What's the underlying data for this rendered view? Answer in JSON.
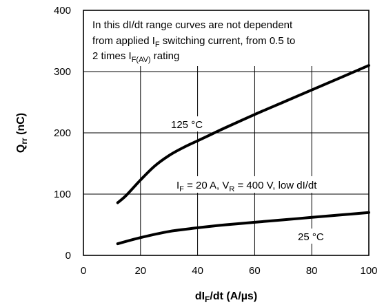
{
  "chart_data": {
    "type": "line",
    "xlabel": {
      "main": "dI",
      "sub": "F",
      "rest": "/dt (A/µs)"
    },
    "ylabel": {
      "main": "Q",
      "sub": "rr",
      "rest": " (nC)"
    },
    "xlim": [
      0,
      100
    ],
    "ylim": [
      0,
      400
    ],
    "x_ticks": [
      "0",
      "20",
      "40",
      "60",
      "80",
      "100"
    ],
    "y_ticks": [
      "0",
      "100",
      "200",
      "300",
      "400"
    ],
    "grid": true,
    "series": [
      {
        "name": "125 °C",
        "x": [
          12,
          15,
          20,
          25,
          30,
          35,
          40,
          45,
          50,
          60,
          70,
          80,
          90,
          100
        ],
        "y": [
          86,
          98,
          123,
          146,
          163,
          176,
          187,
          198,
          209,
          230,
          250,
          270,
          290,
          310
        ]
      },
      {
        "name": "25 °C",
        "x": [
          12,
          20,
          30,
          40,
          50,
          60,
          70,
          80,
          90,
          100
        ],
        "y": [
          19,
          29,
          39,
          45,
          50,
          54,
          58,
          62,
          66,
          70
        ]
      }
    ],
    "annotations": {
      "note": {
        "line1": "In this dI/dt range curves are not dependent",
        "line2_pre": "from applied I",
        "line2_sub": "F",
        "line2_post": " switching current, from 0.5 to",
        "line3_pre": "2 times I",
        "line3_sub": "F(AV)",
        "line3_post": " rating"
      },
      "conditions": {
        "p1": "I",
        "s1": "F",
        "p2": " = 20 A, V",
        "s2": "R",
        "p3": " = 400 V, low dI/dt"
      }
    }
  }
}
